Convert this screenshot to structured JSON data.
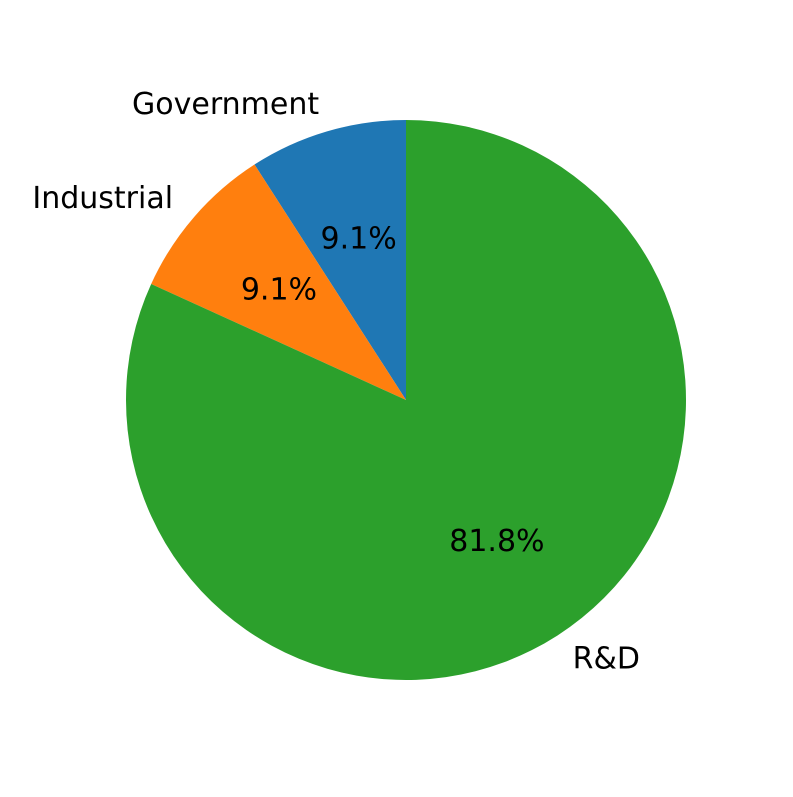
{
  "chart_data": {
    "type": "pie",
    "title": "",
    "start_angle_deg": 90,
    "direction": "counterclockwise",
    "slices": [
      {
        "label": "Government",
        "value": 9.1,
        "pct_label": "9.1%",
        "color": "#1f77b4"
      },
      {
        "label": "Industrial",
        "value": 9.1,
        "pct_label": "9.1%",
        "color": "#ff7f0e"
      },
      {
        "label": "R&D",
        "value": 81.8,
        "pct_label": "81.8%",
        "color": "#2ca02c"
      }
    ]
  }
}
